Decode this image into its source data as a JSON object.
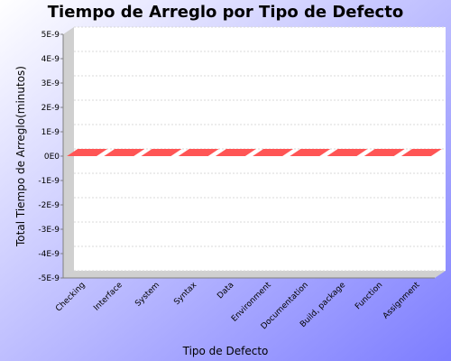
{
  "colors": {
    "bg_start": "#ffffff",
    "bg_end": "#7d7dff",
    "plot_bg": "#ffffff",
    "plot_side": "#d0d0d0",
    "grid": "#d8d8d8",
    "bar": "#ff5555"
  },
  "chart_data": {
    "type": "bar",
    "title": "Tiempo de Arreglo por Tipo de Defecto",
    "xlabel": "Tipo de Defecto",
    "ylabel": "Total Tiempo de Arreglo(minutos)",
    "categories": [
      "Checking",
      "Interface",
      "System",
      "Syntax",
      "Data",
      "Environment",
      "Documentation",
      "Build, package",
      "Function",
      "Assignment"
    ],
    "values": [
      0,
      0,
      0,
      0,
      0,
      0,
      0,
      0,
      0,
      0
    ],
    "ylim": [
      -5e-09,
      5e-09
    ],
    "y_ticks": [
      "5E-9",
      "4E-9",
      "3E-9",
      "2E-9",
      "1E-9",
      "0E0",
      "-1E-9",
      "-2E-9",
      "-3E-9",
      "-4E-9",
      "-5E-9"
    ],
    "grid": true,
    "legend": "none"
  }
}
